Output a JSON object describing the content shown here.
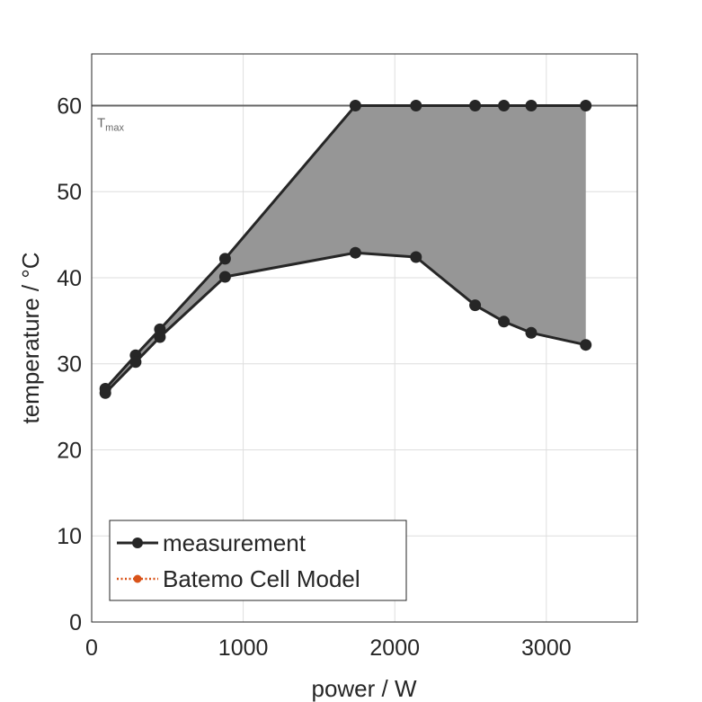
{
  "chart_data": {
    "type": "line",
    "xlabel": "power / W",
    "ylabel": "temperature / °C",
    "xlim": [
      0,
      3600
    ],
    "ylim": [
      0,
      66
    ],
    "xticks": [
      0,
      1000,
      2000,
      3000
    ],
    "yticks": [
      0,
      10,
      20,
      30,
      40,
      50,
      60
    ],
    "grid": true,
    "legend_position": "bottom-left",
    "series": [
      {
        "name": "measurement",
        "role": "upper",
        "color": "#262626",
        "style": "solid",
        "marker": "circle",
        "x": [
          90,
          290,
          450,
          880,
          1740,
          2140,
          2530,
          2720,
          2900,
          3260
        ],
        "y": [
          27.1,
          31.0,
          34.0,
          42.2,
          60.0,
          60.0,
          60.0,
          60.0,
          60.0,
          60.0
        ]
      },
      {
        "name": "measurement",
        "role": "lower",
        "color": "#262626",
        "style": "solid",
        "marker": "circle",
        "x": [
          90,
          290,
          450,
          880,
          1740,
          2140,
          2530,
          2720,
          2900,
          3260
        ],
        "y": [
          26.6,
          30.2,
          33.1,
          40.1,
          42.9,
          42.4,
          36.8,
          34.9,
          33.6,
          32.2
        ]
      }
    ],
    "fill_between": {
      "color": "#969696"
    },
    "reference_line": {
      "y": 60,
      "label": "T",
      "label_sub": "max",
      "color": "#666666"
    },
    "legend": [
      {
        "label": "measurement",
        "color": "#262626",
        "style": "solid",
        "marker": "circle"
      },
      {
        "label": "Batemo Cell Model",
        "color": "#D95319",
        "style": "dotted",
        "marker": "circle"
      }
    ]
  }
}
